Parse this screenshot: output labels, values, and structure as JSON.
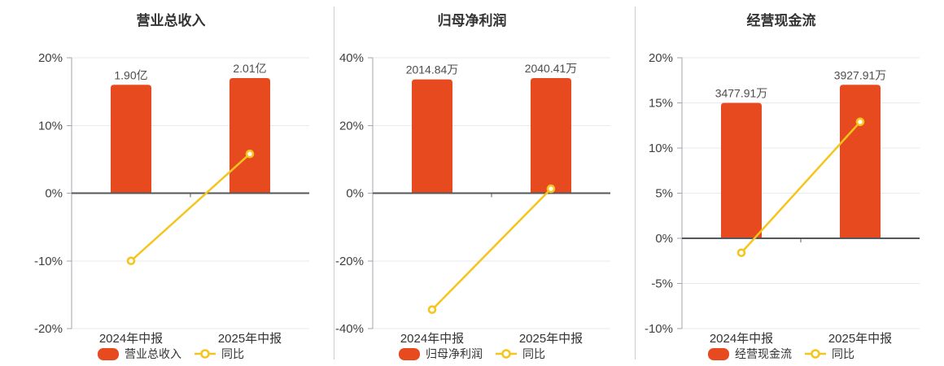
{
  "page": {
    "background": "#ffffff"
  },
  "colors": {
    "bar": "#e84a1f",
    "line": "#f5c51d",
    "marker_fill": "#ffffff",
    "grid": "#e6e9f0",
    "zero_axis": "#55575b",
    "axis": "#a0a6ad",
    "separator": "#cfcfcf",
    "title_text": "#333333",
    "tick_text": "#404040",
    "value_text": "#4d4d4d",
    "category_text": "#333333",
    "legend_text": "#333333"
  },
  "chart_data": [
    {
      "type": "bar+line",
      "title": "营业总收入",
      "categories": [
        "2024年中报",
        "2025年中报"
      ],
      "series": [
        {
          "name": "营业总收入",
          "type": "bar",
          "unit": "亿",
          "values": [
            1.9,
            2.01
          ],
          "data_labels": [
            "1.90亿",
            "2.01亿"
          ],
          "display_heights_axis_pct": [
            16.0,
            17.0
          ]
        },
        {
          "name": "同比",
          "type": "line",
          "unit": "%",
          "values": [
            -10.0,
            5.8
          ]
        }
      ],
      "yaxis": {
        "min": -20,
        "max": 20,
        "step": 10,
        "suffix": "%",
        "tick_labels": [
          "20%",
          "10%",
          "0%",
          "-10%",
          "-20%"
        ]
      },
      "grid": true,
      "legend_position": "bottom"
    },
    {
      "type": "bar+line",
      "title": "归母净利润",
      "categories": [
        "2024年中报",
        "2025年中报"
      ],
      "series": [
        {
          "name": "归母净利润",
          "type": "bar",
          "unit": "万",
          "values": [
            2014.84,
            2040.41
          ],
          "data_labels": [
            "2014.84万",
            "2040.41万"
          ],
          "display_heights_axis_pct": [
            33.6,
            34.0
          ]
        },
        {
          "name": "同比",
          "type": "line",
          "unit": "%",
          "values": [
            -34.4,
            1.3
          ]
        }
      ],
      "yaxis": {
        "min": -40,
        "max": 40,
        "step": 20,
        "suffix": "%",
        "tick_labels": [
          "40%",
          "20%",
          "0%",
          "-20%",
          "-40%"
        ]
      },
      "grid": true,
      "legend_position": "bottom"
    },
    {
      "type": "bar+line",
      "title": "经营现金流",
      "categories": [
        "2024年中报",
        "2025年中报"
      ],
      "series": [
        {
          "name": "经营现金流",
          "type": "bar",
          "unit": "万",
          "values": [
            3477.91,
            3927.91
          ],
          "data_labels": [
            "3477.91万",
            "3927.91万"
          ],
          "display_heights_axis_pct": [
            15.0,
            17.0
          ]
        },
        {
          "name": "同比",
          "type": "line",
          "unit": "%",
          "values": [
            -1.6,
            12.9
          ]
        }
      ],
      "yaxis": {
        "min": -10,
        "max": 20,
        "step": 5,
        "suffix": "%",
        "tick_labels": [
          "20%",
          "15%",
          "10%",
          "5%",
          "0%",
          "-5%",
          "-10%"
        ]
      },
      "grid": true,
      "legend_position": "bottom"
    }
  ]
}
